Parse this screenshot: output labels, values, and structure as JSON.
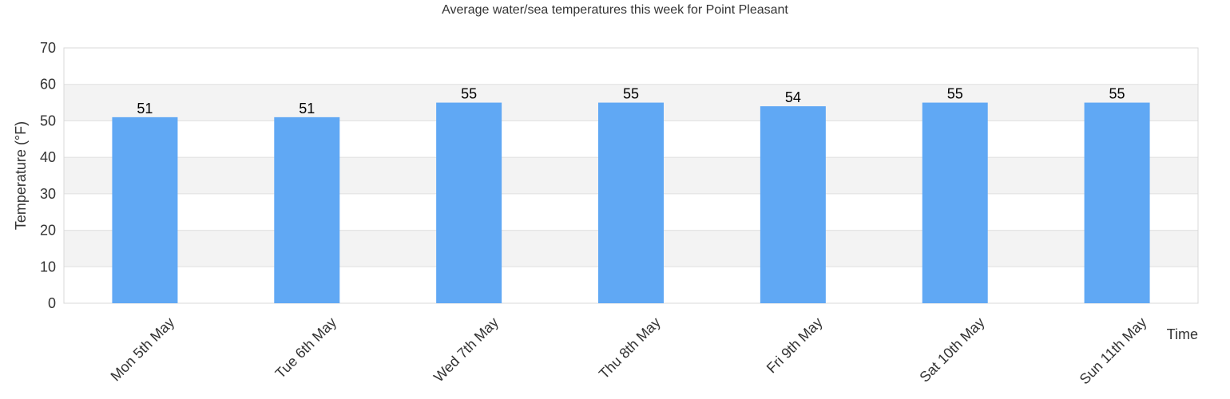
{
  "chart_data": {
    "type": "bar",
    "title": "Average water/sea temperatures this week for Point Pleasant",
    "xlabel": "Time",
    "ylabel": "Temperature (°F)",
    "categories": [
      "Mon 5th May",
      "Tue 6th May",
      "Wed 7th May",
      "Thu 8th May",
      "Fri 9th May",
      "Sat 10th May",
      "Sun 11th May"
    ],
    "values": [
      51,
      51,
      55,
      55,
      54,
      55,
      55
    ],
    "ylim": [
      0,
      70
    ],
    "yticks": [
      0,
      10,
      20,
      30,
      40,
      50,
      60,
      70
    ],
    "grid": true,
    "data_labels": true,
    "colors": {
      "bar": "#60a8f4",
      "band": "#f3f3f3",
      "grid": "#e0e0e0",
      "text": "#333333"
    }
  }
}
